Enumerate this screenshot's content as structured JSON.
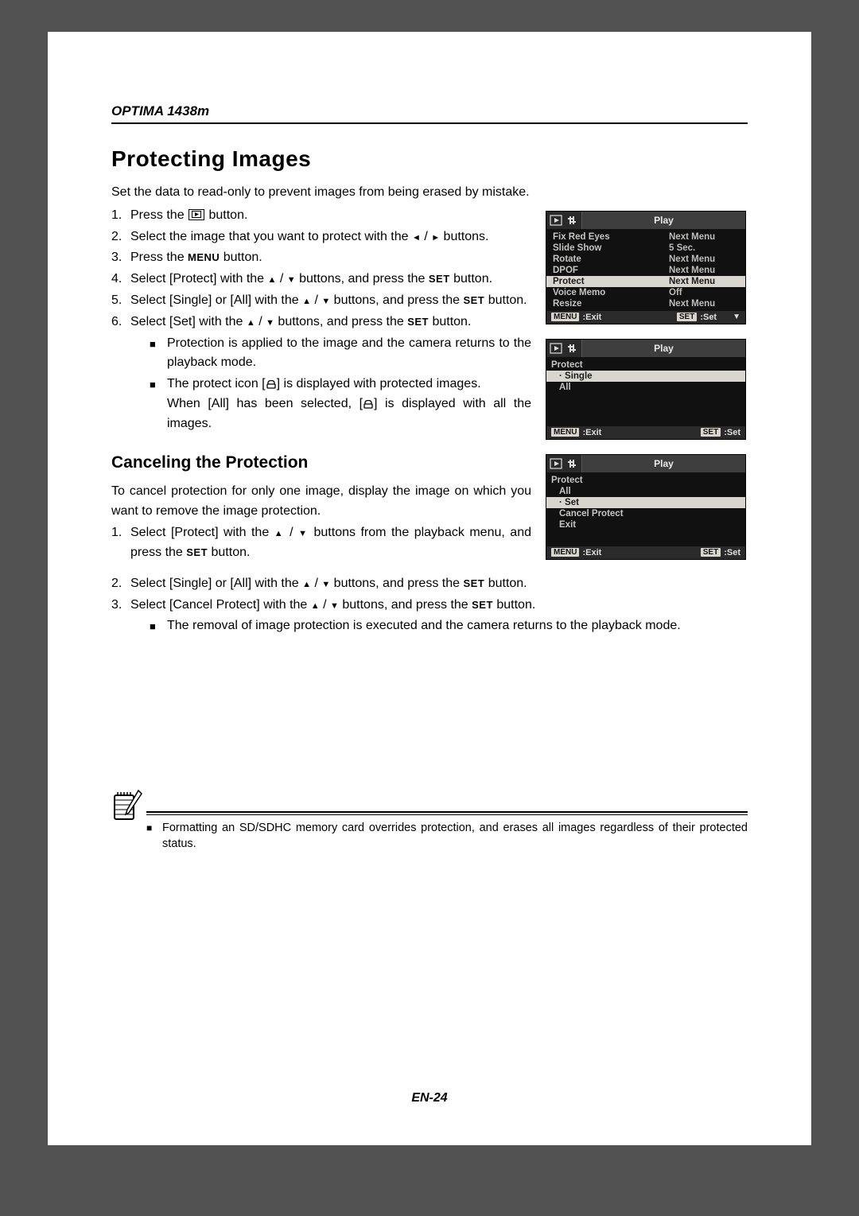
{
  "header": {
    "model": "OPTIMA 1438m"
  },
  "title": "Protecting Images",
  "intro": "Set the data to read-only to prevent images from being erased by mistake.",
  "steps": {
    "s1_a": "Press the ",
    "s1_b": " button.",
    "s2_a": "Select the image that you want to protect with the ",
    "s2_b": " buttons.",
    "s3_a": "Press the ",
    "s3_b": " button.",
    "s4_a": "Select [Protect] with the ",
    "s4_b": " buttons, and press the ",
    "s4_c": " button.",
    "s5_a": "Select [Single] or [All] with the ",
    "s5_b": " buttons, and press the ",
    "s5_c": " button.",
    "s6_a": "Select [Set] with the ",
    "s6_b": " buttons, and press the ",
    "s6_c": " button.",
    "b1": "Protection is applied to the image and the camera returns to the playback mode.",
    "b2_a": "The protect icon [",
    "b2_b": "] is displayed with protected images.",
    "b2_c": "When [All] has been selected, [",
    "b2_d": "] is displayed with all the images."
  },
  "labels": {
    "menu": "MENU",
    "set": "SET",
    "bullet": "■"
  },
  "subtitle": "Canceling the Protection",
  "cancel_intro": "To cancel protection for only one image, display the image on which you want to remove the image protection.",
  "cancel": {
    "c1_a": "Select [Protect] with the ",
    "c1_b": " buttons from the playback menu, and press the ",
    "c1_c": " button.",
    "c2_a": "Select [Single] or [All] with the ",
    "c2_b": " buttons, and press the ",
    "c2_c": " button.",
    "c3_a": "Select [Cancel Protect] with the ",
    "c3_b": " buttons, and press the ",
    "c3_c": " button.",
    "cb1": "The removal of image protection is executed and the camera returns to the playback mode."
  },
  "note": "Formatting an SD/SDHC memory card overrides protection, and erases all images regardless of their protected status.",
  "page_num": "EN-24",
  "lcd1": {
    "tab": "Play",
    "rows": [
      {
        "label": "Fix Red Eyes",
        "value": "Next Menu",
        "hl": false
      },
      {
        "label": "Slide Show",
        "value": "5 Sec.",
        "hl": false
      },
      {
        "label": "Rotate",
        "value": "Next Menu",
        "hl": false
      },
      {
        "label": "DPOF",
        "value": "Next Menu",
        "hl": false
      },
      {
        "label": "Protect",
        "value": "Next Menu",
        "hl": true
      },
      {
        "label": "Voice Memo",
        "value": "Off",
        "hl": false
      },
      {
        "label": "Resize",
        "value": "Next Menu",
        "hl": false
      }
    ],
    "footer": {
      "menu": "MENU",
      "exit": ":Exit",
      "set": "SET",
      "setlbl": ":Set",
      "tri": "▼"
    }
  },
  "lcd2": {
    "tab": "Play",
    "heading": "Protect",
    "rows": [
      {
        "label": "· Single",
        "hl": true
      },
      {
        "label": "All",
        "hl": false
      }
    ],
    "footer": {
      "menu": "MENU",
      "exit": ":Exit",
      "set": "SET",
      "setlbl": ":Set"
    }
  },
  "lcd3": {
    "tab": "Play",
    "heading": "Protect",
    "sub": "All",
    "rows": [
      {
        "label": "· Set",
        "hl": true
      },
      {
        "label": "Cancel Protect",
        "hl": false
      },
      {
        "label": "Exit",
        "hl": false
      }
    ],
    "footer": {
      "menu": "MENU",
      "exit": ":Exit",
      "set": "SET",
      "setlbl": ":Set"
    }
  }
}
